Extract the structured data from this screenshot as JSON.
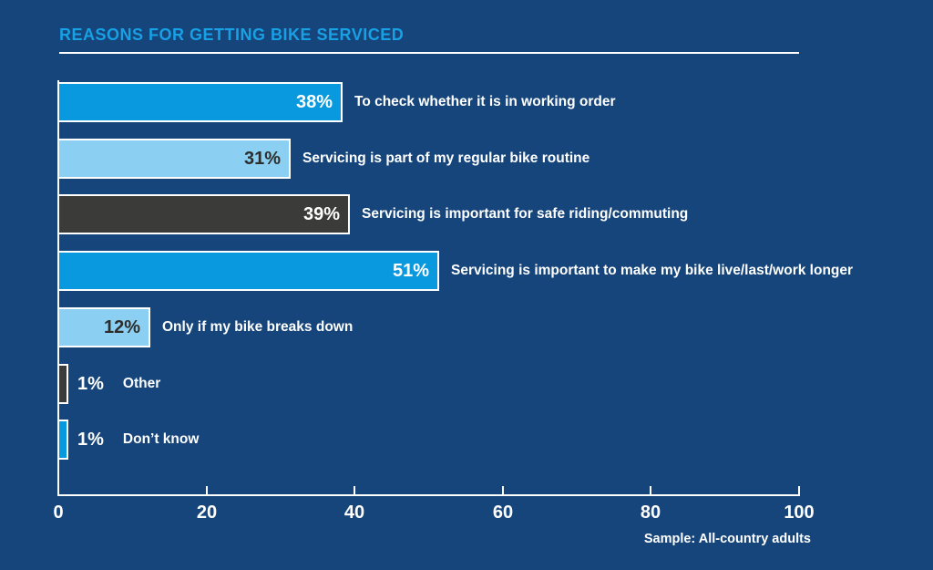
{
  "title": "REASONS FOR GETTING BIKE SERVICED",
  "footnote": "Sample: All-country adults",
  "colors": {
    "background": "#15457B",
    "title_text": "#18A0E5",
    "axis": "#FFFFFF",
    "bar_blue": "#0899DF",
    "bar_lightblue": "#8BD0F2",
    "bar_dark": "#3B3B3A",
    "value_on_light": "#2D2D2C",
    "value_on_dark": "#FFFFFF",
    "label_text": "#FFFFFF"
  },
  "chart_data": {
    "type": "bar",
    "orientation": "horizontal",
    "title": "REASONS FOR GETTING BIKE SERVICED",
    "categories": [
      "To check whether it is in working order",
      "Servicing is part of my regular bike routine",
      "Servicing is important for safe riding/commuting",
      "Servicing is important to make my bike live/last/work longer",
      "Only if my bike breaks down",
      "Other",
      "Don’t know"
    ],
    "values": [
      38,
      31,
      39,
      51,
      12,
      1,
      1
    ],
    "value_labels": [
      "38%",
      "31%",
      "39%",
      "51%",
      "12%",
      "1%",
      "1%"
    ],
    "bar_styles": [
      "blue",
      "lightblue",
      "dark",
      "blue",
      "lightblue",
      "dark",
      "blue"
    ],
    "xlim": [
      0,
      100
    ],
    "xticks": [
      0,
      20,
      40,
      60,
      80,
      100
    ],
    "grid": false,
    "legend": false,
    "footnote": "Sample: All-country adults"
  }
}
